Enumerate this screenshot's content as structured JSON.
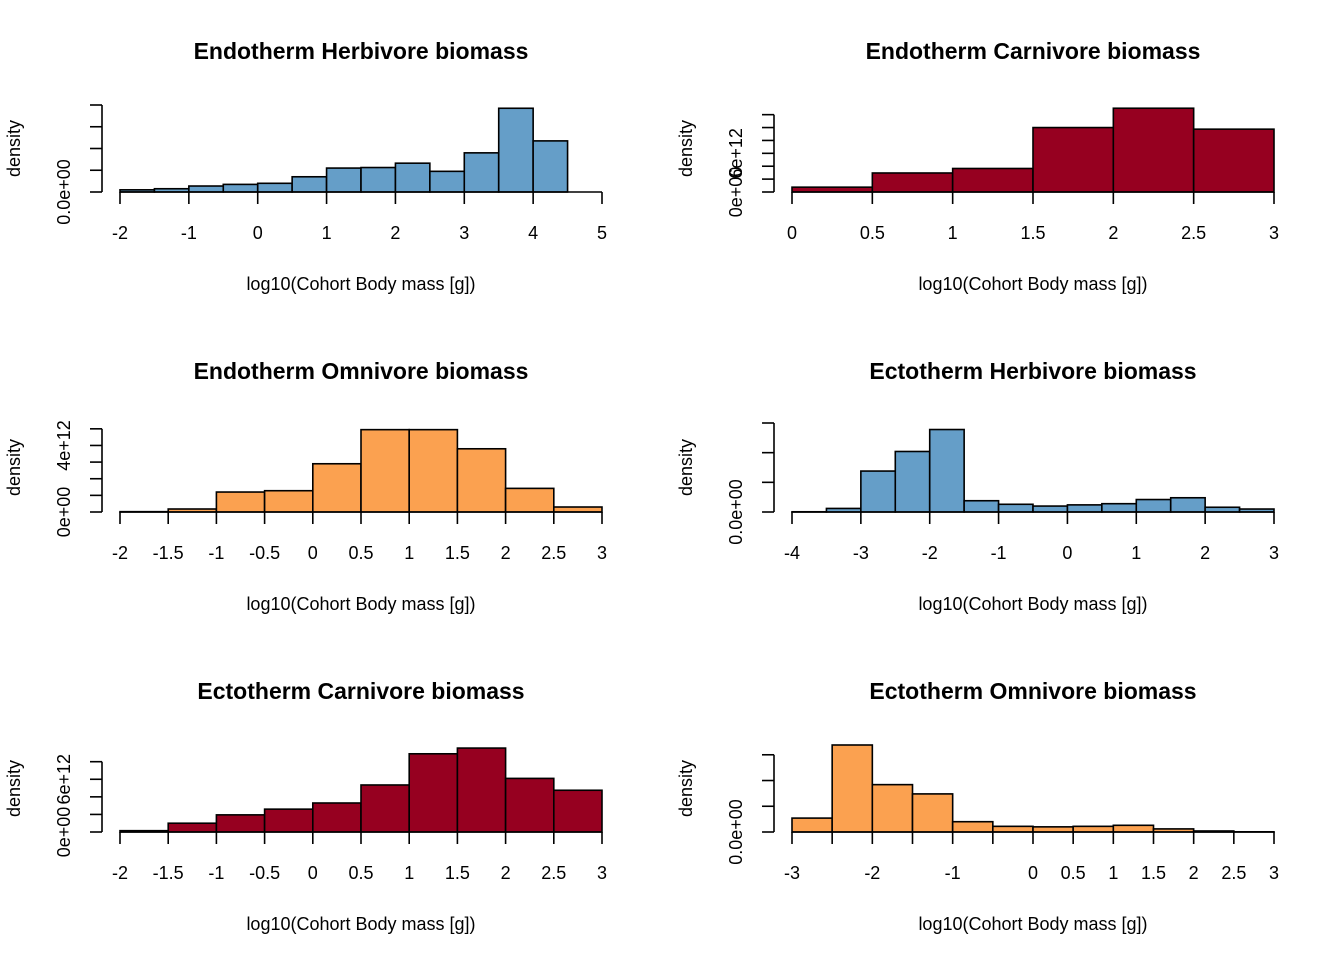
{
  "chart_data": [
    {
      "type": "bar",
      "title": "Endotherm Herbivore biomass",
      "xlabel": "log10(Cohort Body mass [g])",
      "ylabel": "density",
      "color": "#659ec8",
      "bin_edges": [
        -2,
        -1.5,
        -1,
        -0.5,
        0,
        0.5,
        1,
        1.5,
        2,
        2.5,
        3,
        3.5,
        4,
        4.5
      ],
      "values": [
        0.2,
        0.3,
        0.55,
        0.7,
        0.8,
        1.4,
        2.2,
        2.25,
        2.65,
        1.9,
        3.6,
        7.7,
        4.7
      ],
      "xlim": [
        -2,
        5
      ],
      "xticks": [
        -2,
        -1,
        0,
        1,
        2,
        3,
        4,
        5
      ],
      "ylim": [
        0,
        8
      ],
      "ytick_values": [
        0,
        2,
        4,
        6,
        8
      ],
      "ytick_labels": [
        {
          "value": 0,
          "label": "0.0e+00"
        }
      ]
    },
    {
      "type": "bar",
      "title": "Endotherm Carnivore biomass",
      "xlabel": "log10(Cohort Body mass [g])",
      "ylabel": "density",
      "color": "#960020",
      "bin_edges": [
        0,
        0.5,
        1,
        1.5,
        2,
        2.5,
        3
      ],
      "values": [
        0.75,
        2.95,
        3.65,
        10.0,
        13.0,
        9.75
      ],
      "xlim": [
        0,
        3
      ],
      "xticks": [
        0,
        0.5,
        1,
        1.5,
        2,
        2.5,
        3
      ],
      "ylim": [
        0,
        13.5
      ],
      "ytick_values": [
        0,
        2,
        4,
        6,
        8,
        10,
        12
      ],
      "ytick_labels": [
        {
          "value": 0,
          "label": "0e+00"
        },
        {
          "value": 6,
          "label": "6e+12"
        }
      ]
    },
    {
      "type": "bar",
      "title": "Endotherm Omnivore biomass",
      "xlabel": "log10(Cohort Body mass [g])",
      "ylabel": "density",
      "color": "#fba150",
      "bin_edges": [
        -2,
        -1.5,
        -1,
        -0.5,
        0,
        0.5,
        1,
        1.5,
        2,
        2.5,
        3
      ],
      "values": [
        0.02,
        0.18,
        1.2,
        1.28,
        2.9,
        4.95,
        4.95,
        3.8,
        1.42,
        0.3
      ],
      "xlim": [
        -2,
        3
      ],
      "xticks": [
        -2,
        -1.5,
        -1,
        -0.5,
        0,
        0.5,
        1,
        1.5,
        2,
        2.5,
        3
      ],
      "ylim": [
        0,
        5.35
      ],
      "ytick_values": [
        0,
        1,
        2,
        3,
        4,
        5
      ],
      "ytick_labels": [
        {
          "value": 0,
          "label": "0e+00"
        },
        {
          "value": 4,
          "label": "4e+12"
        }
      ]
    },
    {
      "type": "bar",
      "title": "Ectotherm Herbivore biomass",
      "xlabel": "log10(Cohort Body mass [g])",
      "ylabel": "density",
      "color": "#659ec8",
      "bin_edges": [
        -4,
        -3.5,
        -3,
        -2.5,
        -2,
        -1.5,
        -1,
        -0.5,
        0,
        0.5,
        1,
        1.5,
        2,
        2.5,
        3
      ],
      "values": [
        0.02,
        0.3,
        3.45,
        5.1,
        6.95,
        0.95,
        0.65,
        0.5,
        0.6,
        0.7,
        1.05,
        1.2,
        0.4,
        0.25
      ],
      "xlim": [
        -4,
        3
      ],
      "xticks": [
        -4,
        -3,
        -2,
        -1,
        0,
        1,
        2,
        3
      ],
      "ylim": [
        0,
        7.5
      ],
      "ytick_values": [
        0,
        2.5,
        5,
        7.5
      ],
      "ytick_labels": [
        {
          "value": 0,
          "label": "0.0e+00"
        }
      ]
    },
    {
      "type": "bar",
      "title": "Ectotherm Carnivore biomass",
      "xlabel": "log10(Cohort Body mass [g])",
      "ylabel": "density",
      "color": "#960020",
      "bin_edges": [
        -2,
        -1.5,
        -1,
        -0.5,
        0,
        0.5,
        1,
        1.5,
        2,
        2.5,
        3
      ],
      "values": [
        0.15,
        1.0,
        1.95,
        2.6,
        3.3,
        5.35,
        8.9,
        9.55,
        6.1,
        4.75
      ],
      "xlim": [
        -2,
        3
      ],
      "xticks": [
        -2,
        -1.5,
        -1,
        -0.5,
        0,
        0.5,
        1,
        1.5,
        2,
        2.5,
        3
      ],
      "ylim": [
        0,
        9.9
      ],
      "ytick_values": [
        0,
        2,
        4,
        6,
        8
      ],
      "ytick_labels": [
        {
          "value": 0,
          "label": "0e+00"
        },
        {
          "value": 6,
          "label": "6e+12"
        }
      ]
    },
    {
      "type": "bar",
      "title": "Ectotherm Omnivore biomass",
      "xlabel": "log10(Cohort Body mass [g])",
      "ylabel": "density",
      "color": "#fba150",
      "bin_edges": [
        -3,
        -2.5,
        -2,
        -1.5,
        -1,
        -0.5,
        0,
        0.5,
        1,
        1.5,
        2,
        2.5,
        3
      ],
      "values": [
        1.35,
        8.45,
        4.6,
        3.7,
        1.0,
        0.55,
        0.5,
        0.55,
        0.65,
        0.3,
        0.1,
        0.02
      ],
      "xlim": [
        -3,
        3
      ],
      "xticks": [
        -3,
        -2.5,
        -2,
        -1.5,
        -1,
        -0.5,
        0,
        0.5,
        1,
        1.5,
        2,
        2.5,
        3
      ],
      "xtick_labels": [
        "-3",
        "",
        "-2",
        "",
        "-1",
        "",
        "0",
        "0.5",
        "1",
        "1.5",
        "2",
        "2.5",
        "3"
      ],
      "ylim": [
        0,
        8.45
      ],
      "ytick_values": [
        0,
        2.5,
        5,
        7.5
      ],
      "ytick_labels": [
        {
          "value": 0,
          "label": "0.0e+00"
        }
      ]
    }
  ]
}
